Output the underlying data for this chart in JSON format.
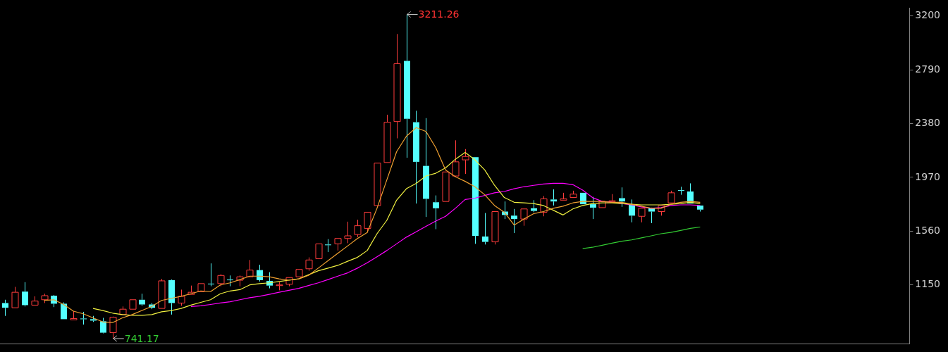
{
  "chart_data": {
    "type": "candlestick",
    "categories": [
      null,
      null,
      null,
      null,
      null,
      null,
      null,
      null,
      null,
      null,
      null,
      null,
      null,
      null,
      null,
      null,
      null,
      null,
      null,
      null,
      null,
      null,
      null,
      null,
      null,
      null,
      null,
      null,
      null,
      null,
      null,
      null,
      null,
      null,
      null,
      null,
      null,
      null,
      null,
      null,
      null,
      null,
      null,
      null,
      null,
      null,
      null,
      null,
      null,
      null,
      null,
      null,
      null,
      null,
      null,
      null,
      null,
      null,
      null,
      null,
      null,
      null,
      null,
      null,
      null,
      null,
      null,
      null,
      null,
      null,
      null,
      null
    ],
    "ohlc": [
      [
        1012,
        1037,
        914,
        976
      ],
      [
        976,
        1135,
        976,
        1094
      ],
      [
        1099,
        1171,
        986,
        996
      ],
      [
        996,
        1063,
        996,
        1027
      ],
      [
        1037,
        1083,
        1012,
        1068
      ],
      [
        1068,
        1073,
        981,
        1007
      ],
      [
        1007,
        1017,
        889,
        889
      ],
      [
        884,
        950,
        884,
        894
      ],
      [
        894,
        945,
        848,
        889
      ],
      [
        889,
        914,
        868,
        878
      ],
      [
        873,
        899,
        781,
        786
      ],
      [
        786,
        909,
        741.17,
        904
      ],
      [
        924,
        986,
        924,
        965
      ],
      [
        965,
        1037,
        965,
        1037
      ],
      [
        1037,
        1083,
        991,
        1001
      ],
      [
        1001,
        1012,
        965,
        976
      ],
      [
        971,
        1196,
        971,
        1181
      ],
      [
        1186,
        1191,
        924,
        1012
      ],
      [
        1012,
        1114,
        991,
        1063
      ],
      [
        1078,
        1145,
        1078,
        1094
      ],
      [
        1099,
        1160,
        1099,
        1160
      ],
      [
        1160,
        1314,
        1140,
        1155
      ],
      [
        1160,
        1232,
        1140,
        1222
      ],
      [
        1191,
        1222,
        1140,
        1186
      ],
      [
        1186,
        1222,
        1140,
        1212
      ],
      [
        1212,
        1340,
        1212,
        1263
      ],
      [
        1263,
        1304,
        1176,
        1186
      ],
      [
        1181,
        1247,
        1124,
        1145
      ],
      [
        1145,
        1171,
        1109,
        1150
      ],
      [
        1155,
        1206,
        1140,
        1206
      ],
      [
        1212,
        1268,
        1212,
        1268
      ],
      [
        1273,
        1360,
        1258,
        1340
      ],
      [
        1350,
        1463,
        1350,
        1463
      ],
      [
        1458,
        1499,
        1401,
        1453
      ],
      [
        1463,
        1504,
        1412,
        1504
      ],
      [
        1504,
        1632,
        1468,
        1524
      ],
      [
        1534,
        1647,
        1514,
        1601
      ],
      [
        1581,
        1704,
        1550,
        1704
      ],
      [
        1755,
        2078,
        1755,
        2078
      ],
      [
        2083,
        2447,
        2083,
        2390
      ],
      [
        2395,
        3062,
        2267,
        2836
      ],
      [
        2857,
        3211.26,
        2119,
        2416
      ],
      [
        2390,
        2477,
        1770,
        2088
      ],
      [
        2057,
        2421,
        1668,
        1806
      ],
      [
        1780,
        1832,
        1575,
        1734
      ],
      [
        1786,
        2011,
        1786,
        2011
      ],
      [
        1980,
        2252,
        1975,
        2088
      ],
      [
        2103,
        2185,
        1996,
        2129
      ],
      [
        2124,
        2124,
        1463,
        1524
      ],
      [
        1519,
        1698,
        1458,
        1478
      ],
      [
        1478,
        1709,
        1458,
        1709
      ],
      [
        1709,
        1786,
        1652,
        1683
      ],
      [
        1678,
        1729,
        1545,
        1652
      ],
      [
        1652,
        1729,
        1601,
        1729
      ],
      [
        1734,
        1796,
        1704,
        1714
      ],
      [
        1704,
        1827,
        1673,
        1806
      ],
      [
        1801,
        1878,
        1755,
        1786
      ],
      [
        1796,
        1852,
        1796,
        1806
      ],
      [
        1816,
        1868,
        1816,
        1842
      ],
      [
        1852,
        1852,
        1765,
        1765
      ],
      [
        1765,
        1821,
        1652,
        1739
      ],
      [
        1739,
        1786,
        1739,
        1786
      ],
      [
        1786,
        1842,
        1786,
        1791
      ],
      [
        1811,
        1893,
        1745,
        1786
      ],
      [
        1760,
        1801,
        1627,
        1678
      ],
      [
        1673,
        1734,
        1627,
        1734
      ],
      [
        1734,
        1739,
        1621,
        1709
      ],
      [
        1709,
        1755,
        1678,
        1755
      ],
      [
        1775,
        1868,
        1775,
        1852
      ],
      [
        1873,
        1898,
        1837,
        1868
      ],
      [
        1862,
        1924,
        1770,
        1770
      ],
      [
        1755,
        1755,
        1709,
        1724
      ]
    ],
    "series": [
      {
        "type": "line",
        "color": "#f0a030",
        "values": [
          null,
          null,
          null,
          null,
          1032,
          1037,
          1001,
          950,
          930,
          899,
          868,
          863,
          899,
          924,
          955,
          986,
          1032,
          1048,
          1063,
          1083,
          1104,
          1099,
          1150,
          1166,
          1191,
          1217,
          1217,
          1212,
          1196,
          1186,
          1196,
          1222,
          1278,
          1335,
          1391,
          1447,
          1504,
          1550,
          1734,
          1950,
          2165,
          2283,
          2349,
          2319,
          2196,
          2026,
          1975,
          1939,
          1898,
          1837,
          1755,
          1704,
          1606,
          1652,
          1693,
          1709,
          1734,
          1750,
          1775,
          1786,
          1786,
          1786,
          1780,
          1780,
          1765,
          1750,
          1734,
          1734,
          1765,
          1780,
          1786,
          1780
        ]
      },
      {
        "type": "line",
        "color": "#f0f040",
        "values": [
          null,
          null,
          null,
          null,
          null,
          null,
          null,
          null,
          null,
          971,
          955,
          935,
          924,
          919,
          919,
          924,
          945,
          955,
          971,
          996,
          1017,
          1037,
          1083,
          1104,
          1114,
          1150,
          1160,
          1166,
          1176,
          1186,
          1196,
          1227,
          1258,
          1278,
          1299,
          1330,
          1360,
          1412,
          1540,
          1642,
          1796,
          1883,
          1924,
          1980,
          2001,
          2042,
          2108,
          2160,
          2103,
          2026,
          1909,
          1816,
          1780,
          1775,
          1770,
          1755,
          1719,
          1683,
          1729,
          1755,
          1770,
          1775,
          1775,
          1770,
          1765,
          1760,
          1760,
          1760,
          1765,
          1770,
          1780,
          1770
        ]
      },
      {
        "type": "line",
        "color": "#ff00ff",
        "values": [
          null,
          null,
          null,
          null,
          null,
          null,
          null,
          null,
          null,
          null,
          null,
          null,
          null,
          null,
          null,
          null,
          null,
          null,
          null,
          986,
          991,
          1001,
          1012,
          1022,
          1037,
          1053,
          1063,
          1078,
          1094,
          1109,
          1124,
          1145,
          1166,
          1191,
          1217,
          1242,
          1278,
          1319,
          1365,
          1412,
          1463,
          1514,
          1555,
          1596,
          1637,
          1673,
          1734,
          1801,
          1811,
          1832,
          1852,
          1862,
          1883,
          1898,
          1909,
          1919,
          1924,
          1924,
          1914,
          1873,
          1816,
          1786,
          1780,
          1770,
          1760,
          1745,
          1734,
          1739,
          1755,
          1760,
          1760,
          1755
        ]
      },
      {
        "type": "line",
        "color": "#33cc33",
        "values": [
          null,
          null,
          null,
          null,
          null,
          null,
          null,
          null,
          null,
          null,
          null,
          null,
          null,
          null,
          null,
          null,
          null,
          null,
          null,
          null,
          null,
          null,
          null,
          null,
          null,
          null,
          null,
          null,
          null,
          null,
          null,
          null,
          null,
          null,
          null,
          null,
          null,
          null,
          null,
          null,
          null,
          null,
          null,
          null,
          null,
          null,
          null,
          null,
          null,
          null,
          null,
          null,
          null,
          null,
          null,
          null,
          null,
          null,
          null,
          1427,
          1437,
          1452,
          1468,
          1483,
          1493,
          1509,
          1524,
          1540,
          1550,
          1565,
          1581,
          1591
        ]
      }
    ],
    "ylim": [
      700,
      3260
    ],
    "yticks": [
      1150,
      1560,
      1970,
      2380,
      2790,
      3200
    ],
    "annotations": [
      "3211.26",
      "741.17"
    ]
  }
}
